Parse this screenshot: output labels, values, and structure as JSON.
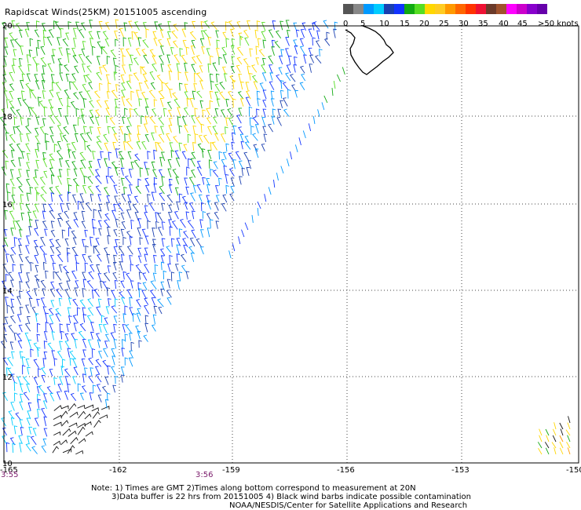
{
  "title": "Rapidscat Winds(25KM) 20151005 ascending",
  "legend": {
    "colors": [
      "#555555",
      "#888888",
      "#0099ff",
      "#00ccff",
      "#1a3fb0",
      "#1133ff",
      "#11aa11",
      "#55dd22",
      "#ffd700",
      "#ffcc22",
      "#ff9900",
      "#ff6600",
      "#ff3300",
      "#ee1133",
      "#6b3a2a",
      "#a0522d",
      "#ff00ff",
      "#cc00cc",
      "#8800cc",
      "#6600aa"
    ],
    "labels": [
      "0",
      "5",
      "10",
      "15",
      "20",
      "25",
      "30",
      "35",
      "40",
      "45",
      ">50 knots"
    ]
  },
  "axes": {
    "lon_ticks": [
      "-165",
      "-162",
      "-159",
      "-156",
      "-153",
      "-150"
    ],
    "lat_ticks": [
      "20",
      "18",
      "16",
      "14",
      "12",
      "10"
    ]
  },
  "times": {
    "left": "3:55",
    "mid": "3:56"
  },
  "notes": [
    "Note: 1) Times are GMT 2)Times along bottom correspond to measurement at 20N",
    "3)Data buffer is 22 hrs from 20151005 4) Black wind barbs indicate possible contamination",
    "NOAA/NESDIS/Center for Satellite Applications and Research"
  ]
}
